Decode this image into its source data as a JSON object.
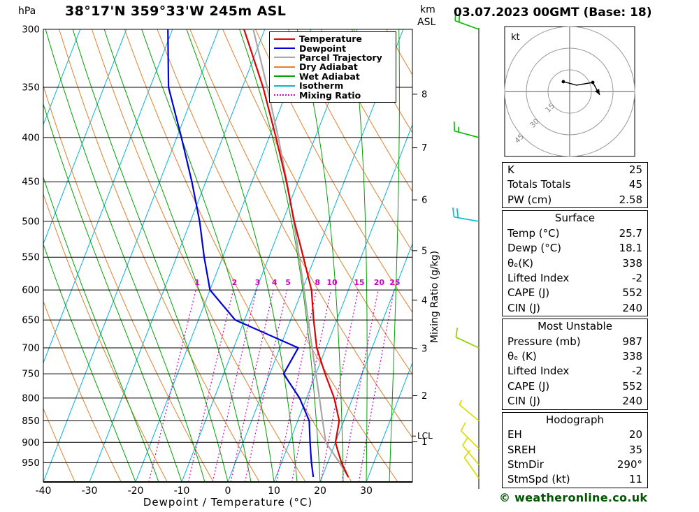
{
  "header": {
    "pressure_unit": "hPa",
    "title": "38°17'N 359°33'W 245m ASL",
    "km_label": "km",
    "asl_label": "ASL",
    "datetime": "03.07.2023 00GMT (Base: 18)"
  },
  "chart_data": {
    "type": "skewt_logp_sounding",
    "xlabel": "Dewpoint / Temperature (°C)",
    "mixing_ratio_axis_label": "Mixing Ratio (g/kg)",
    "pressure_range": [
      300,
      1000
    ],
    "temp_range_at_surface": [
      -40,
      40
    ],
    "skew_degC_over_height": 38,
    "pressure_ticks": [
      300,
      350,
      400,
      450,
      500,
      550,
      600,
      650,
      700,
      750,
      800,
      850,
      900,
      950
    ],
    "temp_ticks": [
      -40,
      -30,
      -20,
      -10,
      0,
      10,
      20,
      30
    ],
    "isotherms": {
      "start": -90,
      "end": 40,
      "step": 10,
      "color": "#00b4d8"
    },
    "dry_adiabats": {
      "theta_k_start": 240,
      "theta_k_end": 450,
      "step_k": 10,
      "color": "#e08030"
    },
    "wet_adiabats": {
      "thetaw_c_start": -20,
      "thetaw_c_end": 45,
      "step_c": 5,
      "color": "#00a400"
    },
    "mixing_ratio": {
      "values_g_kg": [
        1,
        2,
        3,
        4,
        5,
        8,
        10,
        15,
        20,
        25
      ],
      "top_pressure": 600,
      "label_pressure": 592,
      "color": "#d400c8"
    },
    "km_axis": {
      "labels": [
        8,
        7,
        6,
        5,
        4,
        3,
        2,
        1
      ],
      "pressures": [
        356.5,
        411.1,
        472.2,
        540.5,
        616.6,
        701.2,
        795.0,
        898.8
      ],
      "lcl_label": "LCL",
      "lcl_pressure": 885
    },
    "legend": [
      {
        "label": "Temperature",
        "color": "#e00000",
        "style": "solid"
      },
      {
        "label": "Dewpoint",
        "color": "#0000dc",
        "style": "solid"
      },
      {
        "label": "Parcel Trajectory",
        "color": "#a8a8a8",
        "style": "solid"
      },
      {
        "label": "Dry Adiabat",
        "color": "#e08030",
        "style": "solid"
      },
      {
        "label": "Wet Adiabat",
        "color": "#00a400",
        "style": "solid"
      },
      {
        "label": "Isotherm",
        "color": "#00b4d8",
        "style": "solid"
      },
      {
        "label": "Mixing Ratio",
        "color": "#d400c8",
        "style": "dotted"
      }
    ],
    "series": {
      "temperature": {
        "color": "#e00000",
        "pressure": [
          987,
          950,
          925,
          900,
          850,
          800,
          750,
          700,
          650,
          600,
          550,
          500,
          450,
          400,
          350,
          300
        ],
        "values_c": [
          25.7,
          23.0,
          21.5,
          20.0,
          19.0,
          16.0,
          12.0,
          8.0,
          5.0,
          2.0,
          -2.5,
          -7.5,
          -12.5,
          -18.5,
          -25.5,
          -34.5
        ]
      },
      "dewpoint": {
        "color": "#0000dc",
        "pressure": [
          987,
          950,
          925,
          900,
          850,
          800,
          750,
          700,
          650,
          600,
          550,
          500,
          450,
          400,
          350,
          300
        ],
        "values_c": [
          18.1,
          16.5,
          15.5,
          14.5,
          12.5,
          8.5,
          3.0,
          4.0,
          -12.0,
          -20.0,
          -24.0,
          -28.0,
          -33.0,
          -39.0,
          -46.0,
          -51.0
        ]
      },
      "parcel": {
        "color": "#a8a8a8",
        "pressure": [
          987,
          950,
          900,
          850,
          800,
          750,
          700,
          650,
          600,
          550,
          500,
          450,
          400,
          350,
          300
        ],
        "values_c": [
          25.7,
          22.6,
          17.9,
          15.4,
          12.8,
          10.0,
          7.0,
          3.8,
          0.4,
          -3.4,
          -7.6,
          -12.4,
          -18.0,
          -24.6,
          -32.5
        ]
      }
    },
    "wind_barbs": {
      "levels": [
        {
          "pressure": 300,
          "speed_kt": 20,
          "direction_deg": 290,
          "color": "#00c000"
        },
        {
          "pressure": 400,
          "speed_kt": 15,
          "direction_deg": 285,
          "color": "#00c000"
        },
        {
          "pressure": 500,
          "speed_kt": 20,
          "direction_deg": 280,
          "color": "#00c0c0"
        },
        {
          "pressure": 700,
          "speed_kt": 10,
          "direction_deg": 295,
          "color": "#90d000"
        },
        {
          "pressure": 850,
          "speed_kt": 5,
          "direction_deg": 310,
          "color": "#dcdc00"
        },
        {
          "pressure": 915,
          "speed_kt": 10,
          "direction_deg": 315,
          "color": "#dcdc00"
        },
        {
          "pressure": 955,
          "speed_kt": 10,
          "direction_deg": 320,
          "color": "#dcdc00"
        },
        {
          "pressure": 990,
          "speed_kt": 8,
          "direction_deg": 325,
          "color": "#dcdc00"
        }
      ]
    }
  },
  "hodograph": {
    "unit_label": "kt",
    "rings_kt": [
      15,
      30,
      45
    ],
    "trace_kt": [
      {
        "u": -4.4,
        "v": 6.8
      },
      {
        "u": 4.8,
        "v": 4.4
      },
      {
        "u": 16.0,
        "v": 6.3
      }
    ],
    "arrow_end_kt": {
      "u": 20.8,
      "v": -2.4
    },
    "dot_indices": [
      0,
      2
    ]
  },
  "tables": [
    {
      "rows": [
        [
          "K",
          "25"
        ],
        [
          "Totals Totals",
          "45"
        ],
        [
          "PW (cm)",
          "2.58"
        ]
      ]
    },
    {
      "header": "Surface",
      "rows": [
        [
          "Temp (°C)",
          "25.7"
        ],
        [
          "Dewp (°C)",
          "18.1"
        ],
        [
          "θₑ(K)",
          "338"
        ],
        [
          "Lifted Index",
          "-2"
        ],
        [
          "CAPE (J)",
          "552"
        ],
        [
          "CIN (J)",
          "240"
        ]
      ]
    },
    {
      "header": "Most Unstable",
      "rows": [
        [
          "Pressure (mb)",
          "987"
        ],
        [
          "θₑ (K)",
          "338"
        ],
        [
          "Lifted Index",
          "-2"
        ],
        [
          "CAPE (J)",
          "552"
        ],
        [
          "CIN (J)",
          "240"
        ]
      ]
    },
    {
      "header": "Hodograph",
      "rows": [
        [
          "EH",
          "20"
        ],
        [
          "SREH",
          "35"
        ],
        [
          "StmDir",
          "290°"
        ],
        [
          "StmSpd (kt)",
          "11"
        ]
      ]
    }
  ],
  "footer": {
    "copyright": "© weatheronline.co.uk"
  }
}
